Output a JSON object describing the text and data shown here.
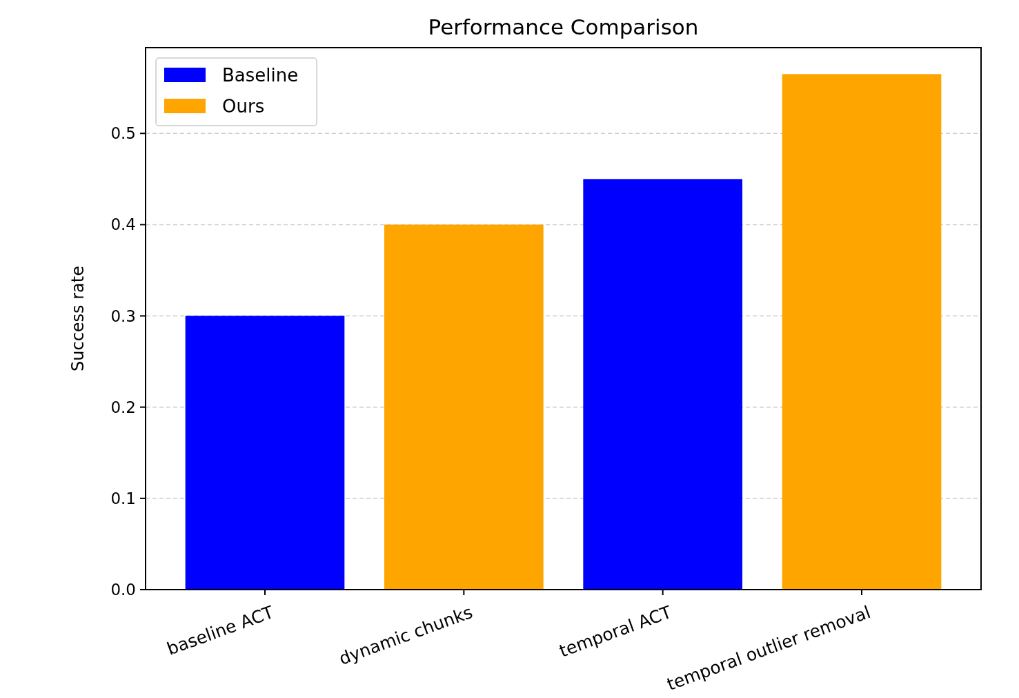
{
  "chart_data": {
    "type": "bar",
    "title": "Performance Comparison",
    "ylabel": "Success rate",
    "categories": [
      "baseline ACT",
      "dynamic chunks",
      "temporal ACT",
      "temporal outlier removal"
    ],
    "series": [
      {
        "name": "Baseline",
        "color": "#0000ff",
        "values": [
          0.3,
          null,
          0.45,
          null
        ]
      },
      {
        "name": "Ours",
        "color": "#ffa500",
        "values": [
          null,
          0.4,
          null,
          0.565
        ]
      }
    ],
    "stacked": true,
    "ylim": [
      0,
      0.594
    ],
    "yticks": [
      {
        "value": 0,
        "label": "0.0"
      },
      0.1,
      0.2,
      0.3,
      0.4,
      0.5
    ],
    "grid": "y",
    "legend": "top left"
  }
}
